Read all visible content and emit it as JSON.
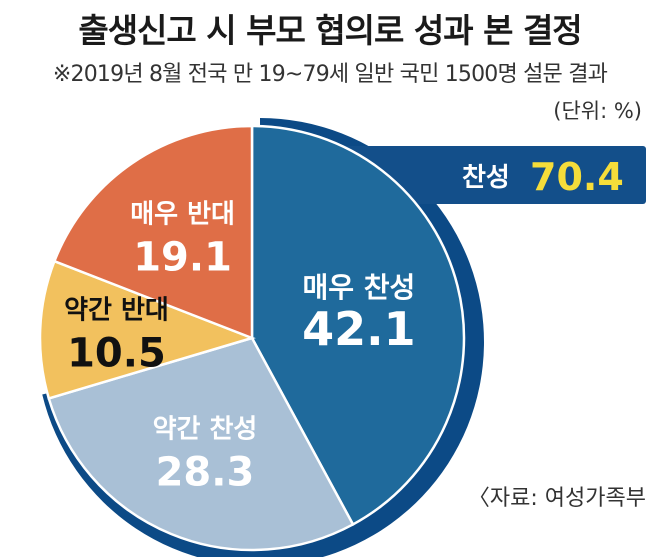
{
  "header": {
    "title": "출생신고 시 부모 협의로 성과 본 결정",
    "subtitle": "※2019년 8월 전국 만 19~79세 일반 국민 1500명 설문 결과",
    "unit": "(단위: %)"
  },
  "callout": {
    "label": "찬성",
    "value": "70.4"
  },
  "source": "〈자료: 여성가족부",
  "colors": {
    "strong_agree": "#1f6a9c",
    "somewhat_agree": "#a9c0d6",
    "somewhat_disagree": "#f2c15e",
    "strong_disagree": "#df6e47",
    "ring": "#0c4a86",
    "callout_bg": "#134f8a",
    "callout_value": "#f5dd3a"
  },
  "chart_data": {
    "type": "pie",
    "title": "출생신고 시 부모 협의로 성과 본 결정",
    "unit": "%",
    "slices": [
      {
        "label": "매우 찬성",
        "value": 42.1,
        "display": "42.1"
      },
      {
        "label": "약간 찬성",
        "value": 28.3,
        "display": "28.3"
      },
      {
        "label": "약간 반대",
        "value": 10.5,
        "display": "10.5"
      },
      {
        "label": "매우 반대",
        "value": 19.1,
        "display": "19.1"
      }
    ],
    "highlight": {
      "label": "찬성",
      "value": 70.4
    }
  }
}
